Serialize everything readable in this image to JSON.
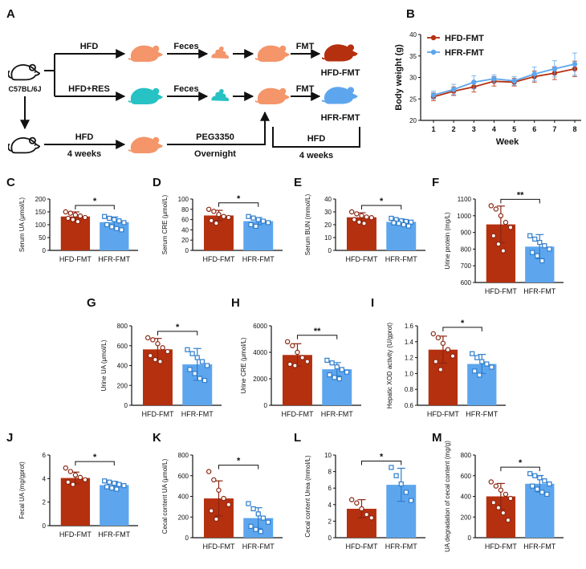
{
  "colors": {
    "hfd": "#b5300f",
    "hfr": "#5da6ee",
    "hfd_edge": "#8a2510",
    "hfr_edge": "#2e7dcc",
    "rat": "#f4956a",
    "rat_res": "#26c2c4",
    "feces_hfd": "#f4956a",
    "feces_res": "#26c2c4"
  },
  "panel_a": {
    "label": "A",
    "start_label": "C57BL/6J",
    "row1": {
      "arrow1": "HFD",
      "arrow2": "Feces",
      "arrow3": "FMT",
      "result": "HFD-FMT"
    },
    "row2": {
      "arrow1": "HFD+RES",
      "arrow2": "Feces",
      "arrow3": "FMT",
      "result": "HFR-FMT"
    },
    "row3": {
      "step1_top": "HFD",
      "step1_bottom": "4 weeks",
      "step2_top": "PEG3350",
      "step2_bottom": "Overnight",
      "step3_top": "HFD",
      "step3_bottom": "4 weeks"
    },
    "icons": [
      "mouse-icon",
      "feces-icon",
      "rat-icon"
    ]
  },
  "chart_data": [
    {
      "id": "B",
      "type": "line",
      "label": "B",
      "x": [
        1,
        2,
        3,
        4,
        5,
        6,
        7,
        8
      ],
      "series": [
        {
          "name": "HFD-FMT",
          "values": [
            25.5,
            26.8,
            27.8,
            29.1,
            28.9,
            30.2,
            31.0,
            32.0
          ],
          "err": [
            0.9,
            1.0,
            1.2,
            1.1,
            0.9,
            1.3,
            1.5,
            1.8
          ]
        },
        {
          "name": "HFR-FMT",
          "values": [
            25.9,
            27.2,
            28.9,
            29.7,
            29.2,
            30.8,
            32.0,
            33.1
          ],
          "err": [
            0.9,
            1.2,
            1.5,
            0.9,
            1.0,
            1.6,
            1.9,
            2.6
          ]
        }
      ],
      "xlabel": "Week",
      "ylabel": "Body weight (g)",
      "ylim": [
        20,
        40
      ],
      "yticks": [
        20,
        25,
        30,
        35,
        40
      ],
      "xticks": [
        "1",
        "2",
        "3",
        "4",
        "5",
        "6",
        "7",
        "8"
      ],
      "legend": "top-left"
    },
    {
      "id": "C",
      "type": "bar",
      "label": "C",
      "categories": [
        "HFD-FMT",
        "HFR-FMT"
      ],
      "values": [
        132,
        110
      ],
      "err": [
        18,
        20
      ],
      "points": [
        [
          150,
          145,
          138,
          134,
          128,
          125,
          120,
          112
        ],
        [
          132,
          125,
          120,
          115,
          108,
          100,
          92,
          85,
          80
        ]
      ],
      "ylabel": "Serum UA (μmol/L)",
      "ylim": [
        0,
        200
      ],
      "yticks": [
        "0",
        "50",
        "100",
        "150",
        "200"
      ],
      "sig": "*"
    },
    {
      "id": "D",
      "type": "bar",
      "label": "D",
      "categories": [
        "HFD-FMT",
        "HFR-FMT"
      ],
      "values": [
        68,
        57
      ],
      "err": [
        10,
        7
      ],
      "points": [
        [
          80,
          76,
          70,
          66,
          64,
          58,
          53
        ],
        [
          66,
          63,
          60,
          57,
          54,
          50,
          47
        ]
      ],
      "ylabel": "Serum CRE (μmol/L)",
      "ylim": [
        0,
        100
      ],
      "yticks": [
        "0",
        "20",
        "40",
        "60",
        "80",
        "100"
      ],
      "sig": "*"
    },
    {
      "id": "E",
      "type": "bar",
      "label": "E",
      "categories": [
        "HFD-FMT",
        "HFR-FMT"
      ],
      "values": [
        25.8,
        22.2
      ],
      "err": [
        3.5,
        2.2
      ],
      "points": [
        [
          30,
          28.5,
          27,
          26,
          25.5,
          24,
          22,
          21
        ],
        [
          25,
          24,
          23,
          22.5,
          22,
          21.5,
          21,
          20,
          19
        ]
      ],
      "ylabel": "Serum BUN (mmol/L)",
      "ylim": [
        0,
        40
      ],
      "yticks": [
        "0",
        "10",
        "20",
        "30",
        "40"
      ],
      "sig": "*"
    },
    {
      "id": "F",
      "type": "bar",
      "label": "F",
      "categories": [
        "HFD-FMT",
        "HFR-FMT"
      ],
      "values": [
        948,
        815
      ],
      "err": [
        110,
        72
      ],
      "points": [
        [
          1060,
          1040,
          1000,
          960,
          930,
          880,
          830,
          790
        ],
        [
          880,
          860,
          840,
          820,
          800,
          780,
          760,
          730
        ]
      ],
      "ylabel": "Urine protein (mg/L)",
      "ylim": [
        600,
        1100
      ],
      "yticks": [
        "600",
        "700",
        "800",
        "900",
        "1000",
        "1100"
      ],
      "sig": "**"
    },
    {
      "id": "G",
      "type": "bar",
      "label": "G",
      "categories": [
        "HFD-FMT",
        "HFR-FMT"
      ],
      "values": [
        563,
        412
      ],
      "err": [
        110,
        160
      ],
      "points": [
        [
          680,
          660,
          620,
          580,
          540,
          500,
          460,
          440
        ],
        [
          560,
          520,
          480,
          440,
          400,
          360,
          320,
          270,
          250
        ]
      ],
      "ylabel": "Urine UA (μmol/L)",
      "ylim": [
        0,
        800
      ],
      "yticks": [
        "0",
        "200",
        "400",
        "600",
        "800"
      ],
      "sig": "*"
    },
    {
      "id": "H",
      "type": "bar",
      "label": "H",
      "categories": [
        "HFD-FMT",
        "HFR-FMT"
      ],
      "values": [
        3800,
        2720
      ],
      "err": [
        850,
        500
      ],
      "points": [
        [
          4800,
          4500,
          4000,
          3600,
          3300,
          3100,
          3000
        ],
        [
          3400,
          3200,
          2900,
          2700,
          2500,
          2300,
          2100,
          2000
        ]
      ],
      "ylabel": "Urine CRE (μmol/L)",
      "ylim": [
        0,
        6000
      ],
      "yticks": [
        "0",
        "2000",
        "4000",
        "6000"
      ],
      "sig": "**"
    },
    {
      "id": "I",
      "type": "bar",
      "label": "I",
      "categories": [
        "HFD-FMT",
        "HFR-FMT"
      ],
      "values": [
        1.3,
        1.12
      ],
      "err": [
        0.17,
        0.12
      ],
      "points": [
        [
          1.5,
          1.45,
          1.38,
          1.3,
          1.22,
          1.15,
          1.05
        ],
        [
          1.25,
          1.2,
          1.15,
          1.12,
          1.08,
          1.03,
          0.98
        ]
      ],
      "ylabel": "Hepatic XOD activity (U/gprot)",
      "ylim": [
        0.6,
        1.6
      ],
      "yticks": [
        "0.6",
        "0.8",
        "1.0",
        "1.2",
        "1.4",
        "1.6"
      ],
      "sig": "*"
    },
    {
      "id": "J",
      "type": "bar",
      "label": "J",
      "categories": [
        "HFD-FMT",
        "HFR-FMT"
      ],
      "values": [
        4.05,
        3.45
      ],
      "err": [
        0.5,
        0.3
      ],
      "points": [
        [
          4.9,
          4.6,
          4.3,
          4.1,
          3.9,
          3.7,
          3.5
        ],
        [
          3.8,
          3.7,
          3.6,
          3.5,
          3.4,
          3.3,
          3.2,
          3.1
        ]
      ],
      "ylabel": "Fecal UA (mg/gprot)",
      "ylim": [
        0,
        6
      ],
      "yticks": [
        "0",
        "2",
        "4",
        "6"
      ],
      "sig": "*"
    },
    {
      "id": "K",
      "type": "bar",
      "label": "K",
      "categories": [
        "HFD-FMT",
        "HFR-FMT"
      ],
      "values": [
        380,
        190
      ],
      "err": [
        170,
        100
      ],
      "points": [
        [
          640,
          560,
          460,
          380,
          320,
          260,
          180
        ],
        [
          330,
          280,
          230,
          190,
          150,
          110,
          80,
          60
        ]
      ],
      "ylabel": "Cecal content UA (μmol/L)",
      "ylim": [
        0,
        800
      ],
      "yticks": [
        "0",
        "200",
        "400",
        "600",
        "800"
      ],
      "sig": "*"
    },
    {
      "id": "L",
      "type": "bar",
      "label": "L",
      "categories": [
        "HFD-FMT",
        "HFR-FMT"
      ],
      "values": [
        3.5,
        6.4
      ],
      "err": [
        1.1,
        2.0
      ],
      "points": [
        [
          4.6,
          4.2,
          3.5,
          2.8,
          2.4
        ],
        [
          8.5,
          7.5,
          6.5,
          5.5,
          4.5
        ]
      ],
      "ylabel": "Cecal content Urea (mmol/L)",
      "ylim": [
        0,
        10
      ],
      "yticks": [
        "0",
        "2",
        "4",
        "6",
        "8",
        "10"
      ],
      "sig": "*"
    },
    {
      "id": "M",
      "type": "bar",
      "label": "M",
      "categories": [
        "HFD-FMT",
        "HFR-FMT"
      ],
      "values": [
        400,
        522
      ],
      "err": [
        125,
        80
      ],
      "points": [
        [
          540,
          500,
          460,
          420,
          380,
          340,
          290,
          240,
          170
        ],
        [
          620,
          600,
          580,
          550,
          520,
          500,
          470,
          440,
          420
        ]
      ],
      "ylabel": "UA degradation of cecal content (mg/g)",
      "ylim": [
        0,
        800
      ],
      "yticks": [
        "0",
        "200",
        "400",
        "600",
        "800"
      ],
      "sig": "*"
    }
  ]
}
